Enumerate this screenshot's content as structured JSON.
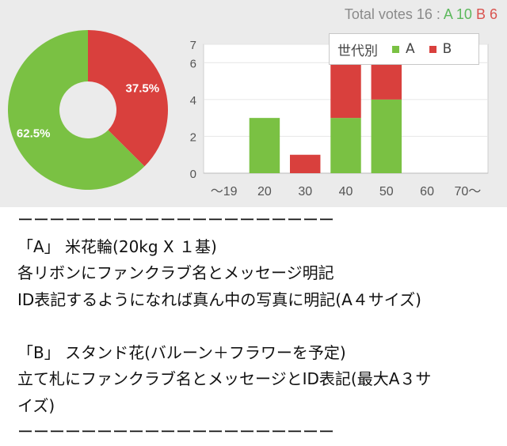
{
  "header": {
    "votes_prefix": "Total votes 16 : ",
    "votes_a": "A 10",
    "votes_b": "B 6"
  },
  "colors": {
    "a": "#7ac143",
    "b": "#d9403d",
    "panel_bg": "#ebebeb"
  },
  "legend": {
    "title": "世代別",
    "items": [
      {
        "label": "A"
      },
      {
        "label": "B"
      }
    ]
  },
  "chart_data": [
    {
      "type": "pie",
      "donut": true,
      "slices": [
        {
          "name": "A",
          "value": 62.5,
          "label": "62.5%"
        },
        {
          "name": "B",
          "value": 37.5,
          "label": "37.5%"
        }
      ]
    },
    {
      "type": "bar",
      "stacked": true,
      "categories": [
        "～19",
        "20",
        "30",
        "40",
        "50",
        "60",
        "70～"
      ],
      "series": [
        {
          "name": "A",
          "values": [
            0,
            3,
            0,
            3,
            4,
            0,
            0
          ]
        },
        {
          "name": "B",
          "values": [
            0,
            0,
            1,
            3,
            2,
            0,
            0
          ]
        }
      ],
      "ylim": [
        0,
        7
      ],
      "yticks": [
        "0",
        "2",
        "4",
        "6",
        "7"
      ],
      "legend": "top-right"
    }
  ],
  "post": {
    "lines": [
      "ーーーーーーーーーーーーーーーーーーーー",
      "「A」 米花輪(20kg X １基)",
      "各リボンにファンクラブ名とメッセージ明記",
      "ID表記するようになれば真ん中の写真に明記(A４サイズ)",
      "",
      "「B」 スタンド花(バルーン＋フラワーを予定)",
      "立て札にファンクラブ名とメッセージとID表記(最大A３サ",
      "イズ)",
      "ーーーーーーーーーーーーーーーーーーーー"
    ]
  }
}
